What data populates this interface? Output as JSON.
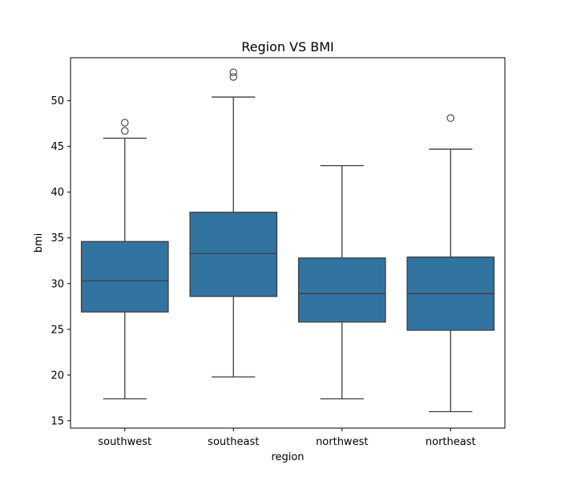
{
  "chart_data": {
    "type": "box",
    "title": "Region VS BMI",
    "xlabel": "region",
    "ylabel": "bmi",
    "ylim": [
      14.2,
      54.7
    ],
    "yticks": [
      15,
      20,
      25,
      30,
      35,
      40,
      45,
      50
    ],
    "grid": false,
    "legend": "none",
    "box_color": "#3274a1",
    "line_color": "#3d3d3d",
    "categories": [
      "southwest",
      "southeast",
      "northwest",
      "northeast"
    ],
    "boxes": [
      {
        "category": "southwest",
        "whisker_low": 17.4,
        "q1": 26.9,
        "median": 30.3,
        "q3": 34.6,
        "whisker_high": 45.9,
        "outliers": [
          46.7,
          47.6
        ]
      },
      {
        "category": "southeast",
        "whisker_low": 19.8,
        "q1": 28.6,
        "median": 33.3,
        "q3": 37.8,
        "whisker_high": 50.4,
        "outliers": [
          52.6,
          53.1
        ]
      },
      {
        "category": "northwest",
        "whisker_low": 17.4,
        "q1": 25.8,
        "median": 28.9,
        "q3": 32.8,
        "whisker_high": 42.9,
        "outliers": []
      },
      {
        "category": "northeast",
        "whisker_low": 16.0,
        "q1": 24.9,
        "median": 28.9,
        "q3": 32.9,
        "whisker_high": 44.7,
        "outliers": [
          48.1
        ]
      }
    ]
  }
}
